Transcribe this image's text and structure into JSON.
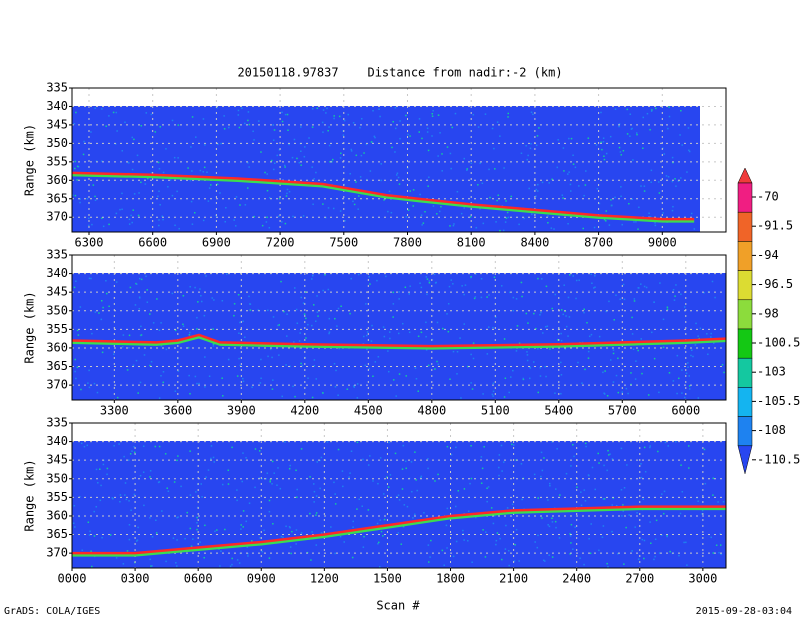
{
  "title": "20150118.97837    Distance from nadir:-2 (km)",
  "x_label": "Scan #",
  "footer_left": "GrADS: COLA/IGES",
  "footer_right": "2015-09-28-03:04",
  "colorbar": {
    "levels": [
      -70,
      -91.5,
      -94,
      -96.5,
      -98,
      -100.5,
      -103,
      -105.5,
      -108,
      -110.5
    ],
    "colors": [
      "#f03c3c",
      "#f01e82",
      "#f06428",
      "#f0a028",
      "#dcdc32",
      "#8cdc3c",
      "#14c814",
      "#14c8a0",
      "#14b4f0",
      "#1e82f0",
      "#2846f0"
    ]
  },
  "chart_data": [
    {
      "type": "line",
      "y_label": "Range (km)",
      "color": "#ff2828",
      "x": [
        6220,
        6600,
        7000,
        7400,
        7700,
        7850,
        8100,
        8400,
        8700,
        9000,
        9150
      ],
      "values": [
        358,
        358.5,
        359.5,
        361,
        364,
        365,
        366.5,
        368,
        369.5,
        370.5,
        370.5
      ],
      "xlim": [
        6220,
        9300
      ],
      "xticks": [
        6300,
        6600,
        6900,
        7200,
        7500,
        7800,
        8100,
        8400,
        8700,
        9000
      ],
      "ylim": [
        374,
        335
      ],
      "yticks": [
        335,
        340,
        345,
        350,
        355,
        360,
        365,
        370
      ],
      "grid": true
    },
    {
      "type": "line",
      "y_label": "Range (km)",
      "color": "#ff2828",
      "x": [
        3100,
        3500,
        3600,
        3700,
        3800,
        4200,
        4800,
        5400,
        6000,
        6190
      ],
      "values": [
        358,
        358.5,
        358,
        356.5,
        358.5,
        359,
        359.5,
        359,
        358,
        357.5
      ],
      "xlim": [
        3100,
        6190
      ],
      "xticks": [
        3300,
        3600,
        3900,
        4200,
        4500,
        4800,
        5100,
        5400,
        5700,
        6000
      ],
      "ylim": [
        374,
        335
      ],
      "yticks": [
        335,
        340,
        345,
        350,
        355,
        360,
        365,
        370
      ],
      "grid": true
    },
    {
      "type": "line",
      "y_label": "Range (km)",
      "color": "#ff2828",
      "x": [
        0,
        300,
        600,
        900,
        1200,
        1500,
        1800,
        2100,
        2400,
        2700,
        3110
      ],
      "values": [
        370,
        370,
        368.5,
        367,
        365,
        362.5,
        360,
        358.5,
        358,
        357.5,
        357.5
      ],
      "xlim": [
        0,
        3110
      ],
      "xticks": [
        {
          "value": 0,
          "label": "0000"
        },
        {
          "value": 300,
          "label": "0300"
        },
        {
          "value": 600,
          "label": "0600"
        },
        {
          "value": 900,
          "label": "0900"
        },
        1200,
        1500,
        1800,
        2100,
        2400,
        2700,
        3000
      ],
      "ylim": [
        374,
        335
      ],
      "yticks": [
        335,
        340,
        345,
        350,
        355,
        360,
        365,
        370
      ],
      "grid": true
    }
  ]
}
